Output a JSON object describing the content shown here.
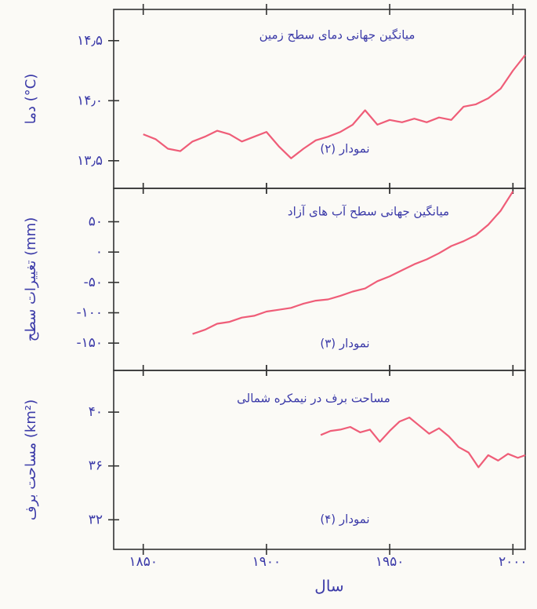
{
  "chart_data": [
    {
      "type": "line",
      "title": "میانگین جهانی دمای سطح زمین",
      "annotation": "نمودار (۲)",
      "y_label": "دما (°C)",
      "color": "#ef5d78",
      "xlim": [
        1838,
        2005
      ],
      "ylim": [
        13.27,
        14.76
      ],
      "yticks": [
        {
          "value": 13.5,
          "label": "۱۳٫۵"
        },
        {
          "value": 14.0,
          "label": "۱۴٫۰"
        },
        {
          "value": 14.5,
          "label": "۱۴٫۵"
        }
      ],
      "x": [
        1850,
        1855,
        1860,
        1865,
        1870,
        1875,
        1880,
        1885,
        1890,
        1895,
        1900,
        1905,
        1910,
        1915,
        1920,
        1925,
        1930,
        1935,
        1940,
        1945,
        1950,
        1955,
        1960,
        1965,
        1970,
        1975,
        1980,
        1985,
        1990,
        1995,
        2000,
        2005
      ],
      "values": [
        13.72,
        13.68,
        13.6,
        13.58,
        13.66,
        13.7,
        13.75,
        13.72,
        13.66,
        13.7,
        13.74,
        13.62,
        13.52,
        13.6,
        13.67,
        13.7,
        13.74,
        13.8,
        13.92,
        13.8,
        13.84,
        13.82,
        13.85,
        13.82,
        13.86,
        13.84,
        13.95,
        13.97,
        14.02,
        14.1,
        14.25,
        14.38
      ]
    },
    {
      "type": "line",
      "title": "میانگین جهانی سطح آب های آزاد",
      "annotation": "نمودار (۳)",
      "y_label": "تغییرات سطح (mm)",
      "color": "#ef5d78",
      "xlim": [
        1838,
        2005
      ],
      "ylim": [
        -195,
        105
      ],
      "yticks": [
        {
          "value": 50,
          "label": "۵۰"
        },
        {
          "value": 0,
          "label": "۰"
        },
        {
          "value": -50,
          "label": "-۵۰"
        },
        {
          "value": -100,
          "label": "-۱۰۰"
        },
        {
          "value": -150,
          "label": "-۱۵۰"
        }
      ],
      "x": [
        1870,
        1875,
        1880,
        1885,
        1890,
        1895,
        1900,
        1905,
        1910,
        1915,
        1920,
        1925,
        1930,
        1935,
        1940,
        1945,
        1950,
        1955,
        1960,
        1965,
        1970,
        1975,
        1980,
        1985,
        1990,
        1995,
        2000
      ],
      "values": [
        -135,
        -128,
        -118,
        -115,
        -108,
        -105,
        -98,
        -95,
        -92,
        -85,
        -80,
        -78,
        -72,
        -65,
        -60,
        -48,
        -40,
        -30,
        -20,
        -12,
        -2,
        10,
        18,
        28,
        45,
        68,
        100
      ]
    },
    {
      "type": "line",
      "title": "مساحت برف در نیمکره شمالی",
      "annotation": "نمودار (۴)",
      "y_label": "مساحت برف (km²)",
      "x_label": "سال",
      "color": "#ef5d78",
      "xlim": [
        1838,
        2005
      ],
      "ylim": [
        29.8,
        43.1
      ],
      "yticks": [
        {
          "value": 32,
          "label": "۳۲"
        },
        {
          "value": 36,
          "label": "۳۶"
        },
        {
          "value": 40,
          "label": "۴۰"
        }
      ],
      "xticks": [
        {
          "value": 1850,
          "label": "۱۸۵۰"
        },
        {
          "value": 1900,
          "label": "۱۹۰۰"
        },
        {
          "value": 1950,
          "label": "۱۹۵۰"
        },
        {
          "value": 2000,
          "label": "۲۰۰۰"
        }
      ],
      "x": [
        1922,
        1926,
        1930,
        1934,
        1938,
        1942,
        1946,
        1950,
        1954,
        1958,
        1962,
        1966,
        1970,
        1974,
        1978,
        1982,
        1986,
        1990,
        1994,
        1998,
        2002,
        2005
      ],
      "values": [
        38.3,
        38.6,
        38.7,
        38.9,
        38.5,
        38.7,
        37.8,
        38.6,
        39.3,
        39.6,
        39.0,
        38.4,
        38.8,
        38.2,
        37.4,
        37.0,
        35.9,
        36.8,
        36.4,
        36.9,
        36.6,
        36.8
      ]
    }
  ]
}
